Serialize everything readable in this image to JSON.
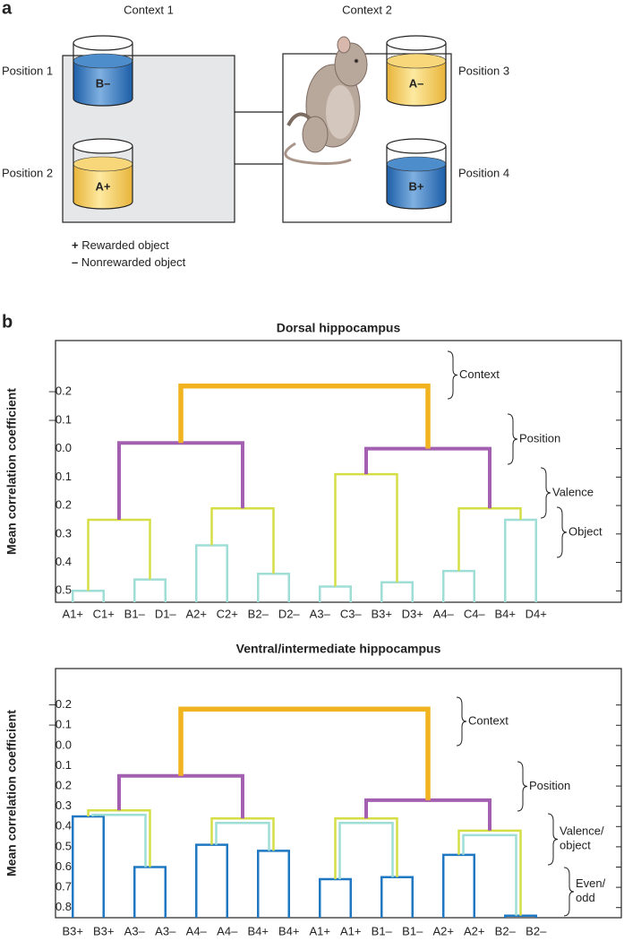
{
  "panel_a": {
    "label": "a",
    "contexts": [
      "Context 1",
      "Context 2"
    ],
    "positions": [
      "Position 1",
      "Position 2",
      "Position 3",
      "Position 4"
    ],
    "objects": [
      "B–",
      "A+",
      "A–",
      "B+"
    ],
    "legend": [
      {
        "symbol": "+",
        "text": "Rewarded object"
      },
      {
        "symbol": "–",
        "text": "Nonrewarded object"
      }
    ]
  },
  "panel_b": {
    "label": "b"
  },
  "chart_data": [
    {
      "type": "dendrogram",
      "title": "Dorsal hippocampus",
      "y_label": "Mean correlation coefficient",
      "ylim": [
        -0.38,
        0.54
      ],
      "y_inverted": true,
      "yticks": [
        {
          "value": -0.2,
          "label": "–0.2"
        },
        {
          "value": -0.1,
          "label": "–0.1"
        },
        {
          "value": 0,
          "label": "0.0"
        },
        0.1,
        0.2,
        0.3,
        0.4,
        0.5
      ],
      "annotations": [
        "Context",
        "Position",
        "Valence",
        "Object"
      ],
      "tree": {
        "height": -0.22,
        "colors": [
          "#f2b320"
        ],
        "children": [
          {
            "height": -0.02,
            "colors": [
              "#a460b0"
            ],
            "children": [
              {
                "height": 0.25,
                "colors": [
                  "#d6de45"
                ],
                "children": [
                  {
                    "height": 0.5,
                    "colors": [
                      "#9fded6"
                    ],
                    "children": [
                      {
                        "label": "A1+"
                      },
                      {
                        "label": "C1+"
                      }
                    ]
                  },
                  {
                    "height": 0.46,
                    "colors": [
                      "#9fded6"
                    ],
                    "children": [
                      {
                        "label": "B1–"
                      },
                      {
                        "label": "D1–"
                      }
                    ]
                  }
                ]
              },
              {
                "height": 0.21,
                "colors": [
                  "#d6de45"
                ],
                "children": [
                  {
                    "height": 0.34,
                    "colors": [
                      "#9fded6"
                    ],
                    "children": [
                      {
                        "label": "A2+"
                      },
                      {
                        "label": "C2+"
                      }
                    ]
                  },
                  {
                    "height": 0.44,
                    "colors": [
                      "#9fded6"
                    ],
                    "children": [
                      {
                        "label": "B2–"
                      },
                      {
                        "label": "D2–"
                      }
                    ]
                  }
                ]
              }
            ]
          },
          {
            "height": 0.0,
            "colors": [
              "#a460b0"
            ],
            "children": [
              {
                "height": 0.09,
                "colors": [
                  "#d6de45"
                ],
                "children": [
                  {
                    "height": 0.485,
                    "colors": [
                      "#9fded6"
                    ],
                    "children": [
                      {
                        "label": "A3–"
                      },
                      {
                        "label": "C3–"
                      }
                    ]
                  },
                  {
                    "height": 0.47,
                    "colors": [
                      "#9fded6"
                    ],
                    "children": [
                      {
                        "label": "B3+"
                      },
                      {
                        "label": "D3+"
                      }
                    ]
                  }
                ]
              },
              {
                "height": 0.21,
                "colors": [
                  "#d6de45"
                ],
                "children": [
                  {
                    "height": 0.43,
                    "colors": [
                      "#9fded6"
                    ],
                    "children": [
                      {
                        "label": "A4–"
                      },
                      {
                        "label": "C4–"
                      }
                    ]
                  },
                  {
                    "height": 0.25,
                    "colors": [
                      "#9fded6"
                    ],
                    "children": [
                      {
                        "label": "B4+"
                      },
                      {
                        "label": "D4+"
                      }
                    ]
                  }
                ]
              }
            ]
          }
        ]
      }
    },
    {
      "type": "dendrogram",
      "title": "Ventral/intermediate hippocampus",
      "y_label": "Mean correlation coefficient",
      "ylim": [
        -0.38,
        0.85
      ],
      "y_inverted": true,
      "yticks": [
        {
          "value": -0.2,
          "label": "–0.2"
        },
        {
          "value": -0.1,
          "label": "–0.1"
        },
        {
          "value": 0,
          "label": "0.0"
        },
        0.1,
        0.2,
        0.3,
        0.4,
        0.5,
        0.6,
        0.7,
        0.8
      ],
      "annotations": [
        "Context",
        "Position",
        "Valence/object",
        "Even/odd"
      ],
      "tree": {
        "height": -0.18,
        "colors": [
          "#f2b320"
        ],
        "children": [
          {
            "height": 0.15,
            "colors": [
              "#a460b0"
            ],
            "children": [
              {
                "height": 0.32,
                "colors": [
                  "#d6de45",
                  "#9fded6"
                ],
                "children": [
                  {
                    "height": 0.35,
                    "colors": [
                      "#1f78c1"
                    ],
                    "children": [
                      {
                        "label": "B3+"
                      },
                      {
                        "label": "B3+"
                      }
                    ]
                  },
                  {
                    "height": 0.6,
                    "colors": [
                      "#1f78c1"
                    ],
                    "children": [
                      {
                        "label": "A3–"
                      },
                      {
                        "label": "A3–"
                      }
                    ]
                  }
                ]
              },
              {
                "height": 0.36,
                "colors": [
                  "#d6de45",
                  "#9fded6"
                ],
                "children": [
                  {
                    "height": 0.49,
                    "colors": [
                      "#1f78c1"
                    ],
                    "children": [
                      {
                        "label": "A4–"
                      },
                      {
                        "label": "A4–"
                      }
                    ]
                  },
                  {
                    "height": 0.52,
                    "colors": [
                      "#1f78c1"
                    ],
                    "children": [
                      {
                        "label": "B4+"
                      },
                      {
                        "label": "B4+"
                      }
                    ]
                  }
                ]
              }
            ]
          },
          {
            "height": 0.27,
            "colors": [
              "#a460b0"
            ],
            "children": [
              {
                "height": 0.36,
                "colors": [
                  "#d6de45",
                  "#9fded6"
                ],
                "children": [
                  {
                    "height": 0.66,
                    "colors": [
                      "#1f78c1"
                    ],
                    "children": [
                      {
                        "label": "A1+"
                      },
                      {
                        "label": "A1+"
                      }
                    ]
                  },
                  {
                    "height": 0.65,
                    "colors": [
                      "#1f78c1"
                    ],
                    "children": [
                      {
                        "label": "B1–"
                      },
                      {
                        "label": "B1–"
                      }
                    ]
                  }
                ]
              },
              {
                "height": 0.42,
                "colors": [
                  "#d6de45",
                  "#9fded6"
                ],
                "children": [
                  {
                    "height": 0.54,
                    "colors": [
                      "#1f78c1"
                    ],
                    "children": [
                      {
                        "label": "A2+"
                      },
                      {
                        "label": "A2+"
                      }
                    ]
                  },
                  {
                    "height": 0.84,
                    "colors": [
                      "#1f78c1"
                    ],
                    "children": [
                      {
                        "label": "B2–"
                      },
                      {
                        "label": "B2–"
                      }
                    ]
                  }
                ]
              }
            ]
          }
        ]
      }
    }
  ]
}
